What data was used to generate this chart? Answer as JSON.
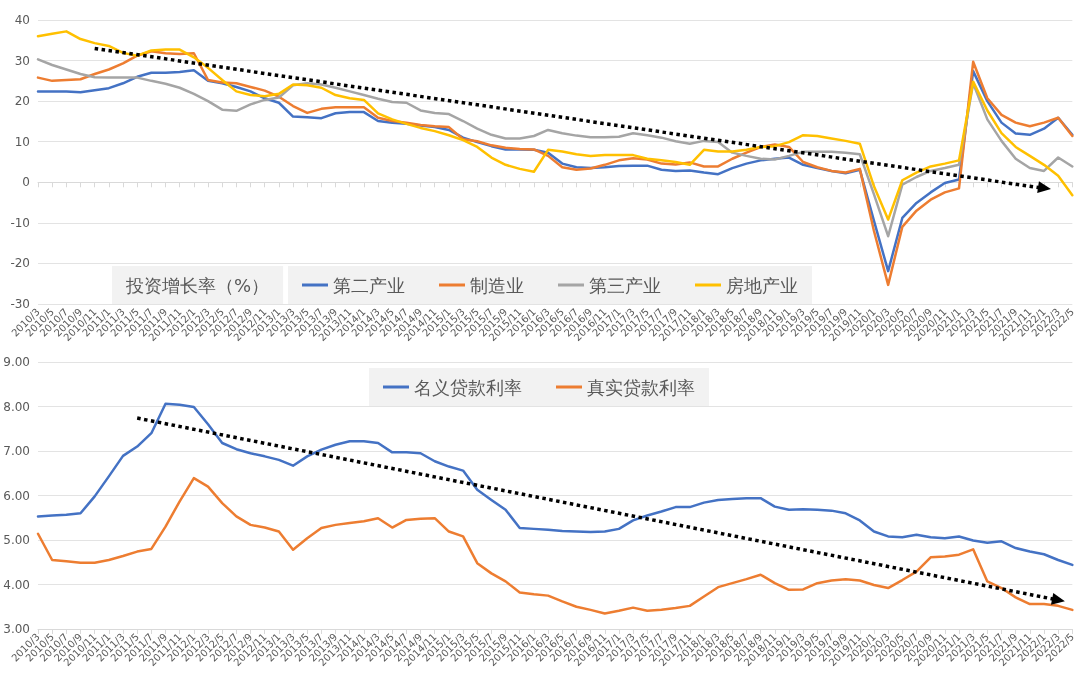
{
  "chart_data": [
    {
      "type": "line",
      "legend_title": "投资增长率（%）",
      "legend": "bottom",
      "grid": "y",
      "categories": [
        "2010/3",
        "2010/5",
        "2010/7",
        "2010/9",
        "2010/11",
        "2011/1",
        "2011/3",
        "2011/5",
        "2011/7",
        "2011/9",
        "2011/11",
        "2012/1",
        "2012/3",
        "2012/5",
        "2012/7",
        "2012/9",
        "2012/11",
        "2013/1",
        "2013/3",
        "2013/5",
        "2013/7",
        "2013/9",
        "2013/11",
        "2014/1",
        "2014/3",
        "2014/5",
        "2014/7",
        "2014/9",
        "2014/11",
        "2015/1",
        "2015/3",
        "2015/5",
        "2015/7",
        "2015/9",
        "2015/11",
        "2016/1",
        "2016/3",
        "2016/5",
        "2016/7",
        "2016/9",
        "2016/11",
        "2017/1",
        "2017/3",
        "2017/5",
        "2017/7",
        "2017/9",
        "2017/11",
        "2018/1",
        "2018/3",
        "2018/5",
        "2018/7",
        "2018/9",
        "2018/11",
        "2019/1",
        "2019/3",
        "2019/5",
        "2019/7",
        "2019/9",
        "2019/11",
        "2020/1",
        "2020/3",
        "2020/5",
        "2020/7",
        "2020/9",
        "2020/11",
        "2021/1",
        "2021/3",
        "2021/5",
        "2021/7",
        "2021/9",
        "2021/11",
        "2022/1",
        "2022/3",
        "2022/5"
      ],
      "ylim": [
        -30,
        40
      ],
      "yticks": [
        -30,
        -20,
        -10,
        0,
        10,
        20,
        30,
        40
      ],
      "series": [
        {
          "name": "第二产业",
          "color": "#4472c4",
          "values": [
            22.4,
            22.4,
            22.4,
            22.2,
            22.7,
            23.2,
            24.4,
            26,
            27,
            27,
            27.2,
            27.6,
            25,
            24.4,
            23.5,
            22.4,
            20.7,
            19.6,
            16.2,
            16,
            15.8,
            17,
            17.3,
            17.3,
            15.1,
            14.7,
            14.4,
            14,
            13.6,
            12.9,
            11,
            9.9,
            8.9,
            8.1,
            8.1,
            8,
            7.3,
            4.6,
            3.7,
            3.5,
            3.7,
            4,
            4.1,
            4.1,
            3.1,
            2.8,
            2.9,
            2.4,
            2,
            3.5,
            4.6,
            5.4,
            5.8,
            6.1,
            4.3,
            3.5,
            2.8,
            2.2,
            3.1,
            -9.5,
            -21.9,
            -8.8,
            -5.1,
            -2.5,
            -0.2,
            0.7,
            27.4,
            20,
            14.7,
            12,
            11.7,
            13.2,
            15.9,
            11.7
          ]
        },
        {
          "name": "制造业",
          "color": "#ed7d31",
          "values": [
            25.8,
            25,
            25.2,
            25.4,
            26.7,
            27.8,
            29.3,
            31.2,
            32.3,
            31.8,
            31.6,
            31.8,
            25.2,
            24.6,
            24.4,
            23.5,
            22.6,
            21.1,
            18.8,
            17.1,
            18.1,
            18.5,
            18.5,
            18.5,
            15.9,
            15.1,
            14.7,
            14.1,
            13.8,
            13.6,
            10.6,
            10.1,
            9.1,
            8.5,
            8.2,
            8.1,
            6.5,
            3.7,
            3.1,
            3.4,
            4.3,
            5.4,
            5.9,
            5.6,
            4.6,
            4.4,
            4.9,
            3.9,
            3.9,
            5.8,
            7.3,
            8.7,
            9.3,
            8.7,
            5,
            3.7,
            2.8,
            2.4,
            3.3,
            -12,
            -25.3,
            -11,
            -7,
            -4.3,
            -2.5,
            -1.5,
            29.7,
            20.7,
            16.6,
            14.7,
            13.8,
            14.7,
            15.9,
            11.4
          ]
        },
        {
          "name": "第三产业",
          "color": "#a5a5a5",
          "values": [
            30.3,
            28.9,
            27.8,
            26.7,
            25.9,
            25.8,
            25.8,
            25.8,
            25,
            24.3,
            23.3,
            21.8,
            20,
            17.9,
            17.6,
            19.2,
            20.3,
            20.9,
            23.9,
            24.4,
            24.1,
            23.3,
            22.4,
            21.5,
            20.6,
            19.8,
            19.6,
            17.7,
            17.1,
            16.8,
            15.1,
            13.2,
            11.7,
            10.8,
            10.8,
            11.4,
            12.9,
            12.1,
            11.5,
            11.1,
            11.1,
            11.2,
            12.1,
            11.6,
            11,
            10.1,
            9.5,
            10.2,
            9.9,
            7.3,
            6.5,
            5.8,
            5.6,
            6.5,
            7.5,
            7.5,
            7.5,
            7.3,
            6.9,
            -3,
            -13.3,
            -0.6,
            1.3,
            2.8,
            3.5,
            4.3,
            24.4,
            15.5,
            10.2,
            5.8,
            3.5,
            2.8,
            6.1,
            3.9
          ]
        },
        {
          "name": "房地产业",
          "color": "#ffc000",
          "values": [
            36,
            36.6,
            37.2,
            35.3,
            34.3,
            33.6,
            31.9,
            31.2,
            32.5,
            32.7,
            32.7,
            30.8,
            28.2,
            25.2,
            22.4,
            21.5,
            21.2,
            21.8,
            24.1,
            23.9,
            23.3,
            21.5,
            20.7,
            20.3,
            17,
            15.5,
            14.4,
            13.4,
            12.6,
            11.6,
            10.4,
            8.7,
            6.1,
            4.3,
            3.3,
            2.6,
            8,
            7.6,
            6.9,
            6.5,
            6.7,
            6.7,
            6.7,
            5.8,
            5.4,
            5,
            4.3,
            8,
            7.6,
            7.6,
            8,
            8.7,
            8.9,
            9.9,
            11.6,
            11.4,
            10.8,
            10.2,
            9.5,
            -1,
            -9.2,
            0.5,
            2.4,
            3.9,
            4.6,
            5.4,
            24.8,
            17.7,
            12.1,
            8.7,
            6.5,
            4.3,
            1.6,
            -3.2
          ]
        },
        {
          "type": "line",
          "color": "#000000",
          "line_style": "dotted",
          "marker": "triangle",
          "x": [
            "2010/11",
            "2022/1"
          ],
          "values": [
            33,
            -1.5
          ]
        }
      ]
    },
    {
      "type": "line",
      "legend": "top",
      "grid": "y",
      "categories": [
        "2010/3",
        "2010/5",
        "2010/7",
        "2010/9",
        "2010/11",
        "2011/1",
        "2011/3",
        "2011/5",
        "2011/7",
        "2011/9",
        "2011/11",
        "2012/1",
        "2012/3",
        "2012/5",
        "2012/7",
        "2012/9",
        "2012/11",
        "2013/1",
        "2013/3",
        "2013/5",
        "2013/7",
        "2013/9",
        "2013/11",
        "2014/1",
        "2014/3",
        "2014/5",
        "2014/7",
        "2014/9",
        "2014/11",
        "2015/1",
        "2015/3",
        "2015/5",
        "2015/7",
        "2015/9",
        "2015/11",
        "2016/1",
        "2016/3",
        "2016/5",
        "2016/7",
        "2016/9",
        "2016/11",
        "2017/1",
        "2017/3",
        "2017/5",
        "2017/7",
        "2017/9",
        "2017/11",
        "2018/1",
        "2018/3",
        "2018/5",
        "2018/7",
        "2018/9",
        "2018/11",
        "2019/1",
        "2019/3",
        "2019/5",
        "2019/7",
        "2019/9",
        "2019/11",
        "2020/1",
        "2020/3",
        "2020/5",
        "2020/7",
        "2020/9",
        "2020/11",
        "2021/1",
        "2021/3",
        "2021/5",
        "2021/7",
        "2021/9",
        "2021/11",
        "2022/1",
        "2022/3",
        "2022/5"
      ],
      "ylim": [
        3,
        9
      ],
      "yticks": [
        {
          "value": 3,
          "label": "3.00"
        },
        {
          "value": 4,
          "label": "4.00"
        },
        {
          "value": 5,
          "label": "5.00"
        },
        {
          "value": 6,
          "label": "6.00"
        },
        {
          "value": 7,
          "label": "7.00"
        },
        {
          "value": 8,
          "label": "8.00"
        },
        {
          "value": 9,
          "label": "9.00"
        }
      ],
      "series": [
        {
          "name": "名义贷款利率",
          "color": "#4472c4",
          "values": [
            5.53,
            5.55,
            5.57,
            5.6,
            5.98,
            6.43,
            6.89,
            7.1,
            7.4,
            8.06,
            8.04,
            7.99,
            7.6,
            7.18,
            7.04,
            6.95,
            6.88,
            6.8,
            6.67,
            6.88,
            7.03,
            7.14,
            7.22,
            7.22,
            7.18,
            6.97,
            6.97,
            6.95,
            6.77,
            6.65,
            6.56,
            6.13,
            5.9,
            5.68,
            5.27,
            5.25,
            5.23,
            5.2,
            5.19,
            5.18,
            5.19,
            5.25,
            5.44,
            5.55,
            5.64,
            5.74,
            5.74,
            5.84,
            5.9,
            5.92,
            5.94,
            5.94,
            5.75,
            5.68,
            5.69,
            5.68,
            5.66,
            5.6,
            5.44,
            5.19,
            5.08,
            5.06,
            5.12,
            5.06,
            5.04,
            5.08,
            4.99,
            4.94,
            4.97,
            4.82,
            4.74,
            4.68,
            4.55,
            4.44
          ]
        },
        {
          "name": "真实贷款利率",
          "color": "#ed7d31",
          "values": [
            5.14,
            4.55,
            4.52,
            4.49,
            4.49,
            4.55,
            4.64,
            4.74,
            4.8,
            5.3,
            5.87,
            6.39,
            6.2,
            5.83,
            5.53,
            5.34,
            5.28,
            5.19,
            4.78,
            5.04,
            5.27,
            5.34,
            5.38,
            5.42,
            5.49,
            5.28,
            5.45,
            5.48,
            5.49,
            5.19,
            5.08,
            4.48,
            4.25,
            4.07,
            3.82,
            3.78,
            3.75,
            3.62,
            3.5,
            3.43,
            3.35,
            3.41,
            3.48,
            3.41,
            3.43,
            3.47,
            3.52,
            3.73,
            3.94,
            4.03,
            4.12,
            4.22,
            4.03,
            3.88,
            3.89,
            4.03,
            4.09,
            4.12,
            4.09,
            3.99,
            3.92,
            4.1,
            4.29,
            4.61,
            4.63,
            4.67,
            4.79,
            4.07,
            3.92,
            3.71,
            3.56,
            3.56,
            3.52,
            3.43
          ]
        },
        {
          "type": "line",
          "color": "#000000",
          "line_style": "dotted",
          "marker": "triangle",
          "x": [
            "2011/5",
            "2022/3"
          ],
          "values": [
            7.74,
            3.65
          ]
        }
      ]
    }
  ]
}
